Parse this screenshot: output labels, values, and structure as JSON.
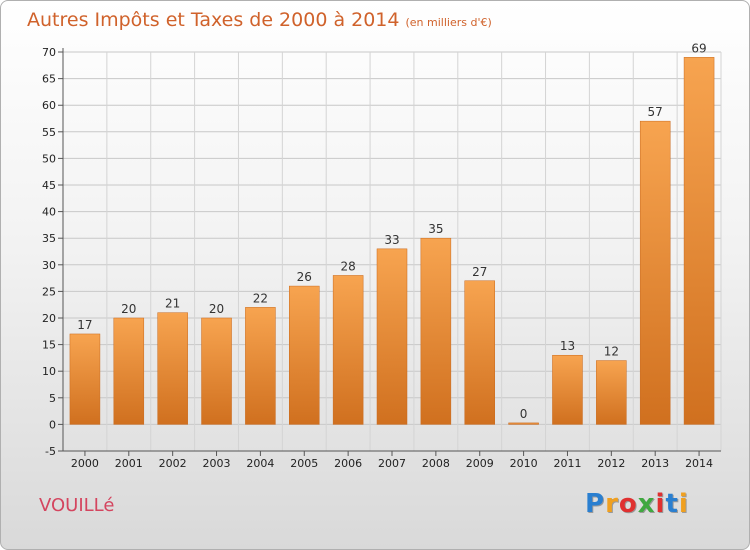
{
  "chart_data": {
    "type": "bar",
    "title": "Autres Impôts et Taxes de 2000 à 2014",
    "subtitle": "(en milliers d'€)",
    "categories": [
      "2000",
      "2001",
      "2002",
      "2003",
      "2004",
      "2005",
      "2006",
      "2007",
      "2008",
      "2009",
      "2010",
      "2011",
      "2012",
      "2013",
      "2014"
    ],
    "values": [
      17,
      20,
      21,
      20,
      22,
      26,
      28,
      33,
      35,
      27,
      0,
      13,
      12,
      57,
      69
    ],
    "ylim": [
      -5,
      70
    ],
    "yticks": [
      -5,
      0,
      5,
      10,
      15,
      20,
      25,
      30,
      35,
      40,
      45,
      50,
      55,
      60,
      65,
      70
    ],
    "grid": true,
    "bar_color": "#f0913e"
  },
  "place_name": "VOUILLé",
  "brand": {
    "letters": [
      "P",
      "r",
      "o",
      "x",
      "i",
      "t",
      "i"
    ],
    "colors": [
      "#2a7fd0",
      "#f0a020",
      "#e03030",
      "#40a840",
      "#e03030",
      "#2a7fd0",
      "#f0a020"
    ]
  }
}
